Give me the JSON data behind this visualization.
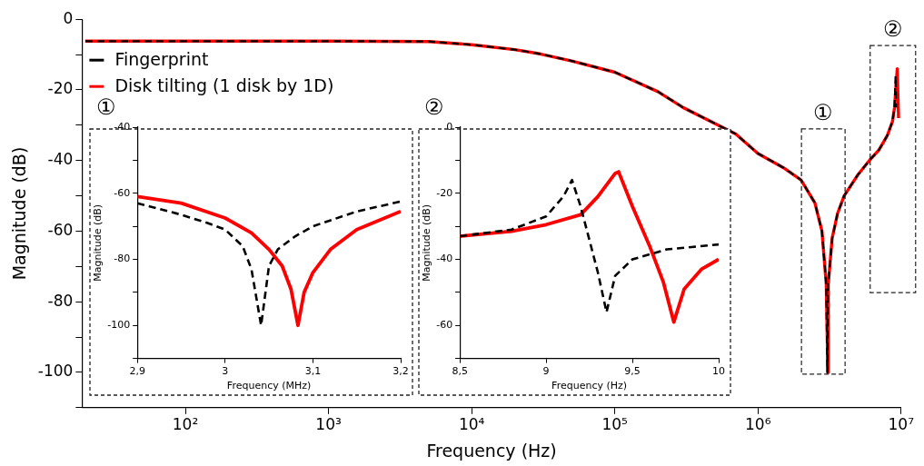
{
  "chart_data": [
    {
      "type": "line",
      "xlabel": "Frequency (Hz)",
      "ylabel": "Magnitude (dB)",
      "log": "x",
      "xlim": [
        19,
        10000000
      ],
      "ylim": [
        -110,
        0
      ],
      "xticks": [
        {
          "value": 100,
          "label": "10²"
        },
        {
          "value": 1000,
          "label": "10³"
        },
        {
          "value": 10000,
          "label": "10⁴"
        },
        {
          "value": 100000,
          "label": "10⁵"
        },
        {
          "value": 1000000,
          "label": "10⁶"
        },
        {
          "value": 10000000,
          "label": "10⁷"
        }
      ],
      "yticks": [
        0,
        {
          "value": -10,
          "label": null
        },
        -20,
        {
          "value": -30,
          "label": null
        },
        -40,
        {
          "value": -50,
          "label": null
        },
        -60,
        {
          "value": -70,
          "label": null
        },
        -80,
        {
          "value": -90,
          "label": null
        },
        -100,
        {
          "value": -110,
          "label": null
        }
      ],
      "legend": "top left",
      "grid": false,
      "marker": "none",
      "annotations": [
        "①",
        "②",
        "①",
        "②"
      ],
      "series": [
        {
          "name": "Fingerprint",
          "color": "#000000",
          "line_style": "dashed",
          "x": [
            20,
            100,
            1000,
            5000,
            10000,
            20000,
            30000,
            50000,
            100000,
            200000,
            300000,
            700000,
            1000000,
            1500000,
            2000000,
            2500000,
            2800000,
            3000000,
            3050000,
            3100000,
            3300000,
            3600000,
            4000000,
            5000000,
            6000000,
            7000000,
            8000000,
            8700000,
            9000000,
            9150000,
            9250000
          ],
          "values": [
            -6.2,
            -6.2,
            -6.2,
            -6.3,
            -7.2,
            -8.6,
            -9.8,
            -11.8,
            -15,
            -20.5,
            -25,
            -32.5,
            -38,
            -42,
            -45.5,
            -52,
            -60,
            -75,
            -100,
            -75,
            -62,
            -55,
            -50,
            -44,
            -40,
            -37,
            -33,
            -29,
            -25,
            -16,
            -25
          ]
        },
        {
          "name": "Disk tilting (1 disk by 1D)",
          "color": "#ff0000",
          "line_style": "solid",
          "x": [
            20,
            100,
            1000,
            5000,
            10000,
            20000,
            30000,
            50000,
            100000,
            200000,
            300000,
            700000,
            1000000,
            1500000,
            2000000,
            2500000,
            2800000,
            3000000,
            3080000,
            3100000,
            3300000,
            3600000,
            4000000,
            5000000,
            6000000,
            7000000,
            8000000,
            8700000,
            9000000,
            9400000,
            9600000
          ],
          "values": [
            -6.2,
            -6.2,
            -6.2,
            -6.3,
            -7.2,
            -8.6,
            -9.8,
            -11.8,
            -15,
            -20.5,
            -25,
            -32.5,
            -38,
            -42,
            -45.5,
            -52,
            -60,
            -75,
            -100,
            -75,
            -62,
            -55,
            -50,
            -44,
            -40,
            -37,
            -33,
            -29,
            -25,
            -14,
            -28
          ]
        }
      ]
    },
    {
      "type": "line",
      "xlabel": "Frequency (MHz)",
      "ylabel": "Magnitude (dB)",
      "xlim": [
        2.9,
        3.2
      ],
      "ylim": [
        -110,
        -40
      ],
      "xticks": [
        {
          "value": 2.9,
          "label": "2,9"
        },
        3,
        {
          "value": 3.1,
          "label": "3,1"
        },
        {
          "value": 3.2,
          "label": "3,2"
        }
      ],
      "yticks": [
        -40,
        {
          "value": -50,
          "label": null
        },
        -60,
        {
          "value": -70,
          "label": null
        },
        -80,
        {
          "value": -90,
          "label": null
        },
        -100,
        {
          "value": -110,
          "label": null
        }
      ],
      "grid": false,
      "marker": "none",
      "series": [
        {
          "color": "#000000",
          "line_style": "dashed",
          "x": [
            2.9,
            2.95,
            2.98,
            3.0,
            3.02,
            3.03,
            3.041,
            3.05,
            3.06,
            3.08,
            3.1,
            3.15,
            3.2
          ],
          "values": [
            -63,
            -66.5,
            -69,
            -71,
            -76,
            -83,
            -100,
            -82,
            -77,
            -73,
            -70,
            -65.5,
            -62.5
          ]
        },
        {
          "color": "#ff0000",
          "line_style": "solid",
          "x": [
            2.9,
            2.95,
            3.0,
            3.03,
            3.05,
            3.065,
            3.075,
            3.083,
            3.09,
            3.1,
            3.12,
            3.15,
            3.2
          ],
          "values": [
            -61,
            -63,
            -67.5,
            -72,
            -77,
            -82,
            -89,
            -100,
            -90,
            -84,
            -77,
            -71,
            -65.5
          ]
        }
      ]
    },
    {
      "type": "line",
      "xlabel": "Frequency (Hz)",
      "ylabel": "Magnitude (dB)",
      "xlim": [
        8.5,
        10
      ],
      "ylim": [
        -70,
        0
      ],
      "xticks": [
        {
          "value": 8.5,
          "label": "8,5"
        },
        9,
        {
          "value": 9.5,
          "label": "9,5"
        },
        10
      ],
      "yticks": [
        0,
        {
          "value": -10,
          "label": null
        },
        -20,
        {
          "value": -30,
          "label": null
        },
        -40,
        {
          "value": -50,
          "label": null
        },
        -60,
        {
          "value": -70,
          "label": null
        }
      ],
      "grid": false,
      "marker": "none",
      "series": [
        {
          "color": "#000000",
          "line_style": "dashed",
          "x": [
            8.5,
            8.8,
            9.0,
            9.1,
            9.15,
            9.2,
            9.3,
            9.35,
            9.4,
            9.5,
            9.7,
            10
          ],
          "values": [
            -33,
            -31,
            -27,
            -21,
            -16,
            -24,
            -44,
            -56,
            -45,
            -40,
            -37,
            -35.5
          ]
        },
        {
          "color": "#ff0000",
          "line_style": "solid",
          "x": [
            8.5,
            8.8,
            9.0,
            9.2,
            9.3,
            9.4,
            9.42,
            9.5,
            9.6,
            9.68,
            9.74,
            9.8,
            9.9,
            10
          ],
          "values": [
            -33,
            -31.5,
            -29.5,
            -26.5,
            -21,
            -14,
            -13.5,
            -24,
            -36,
            -47,
            -59,
            -49,
            -43,
            -40
          ]
        }
      ]
    }
  ]
}
